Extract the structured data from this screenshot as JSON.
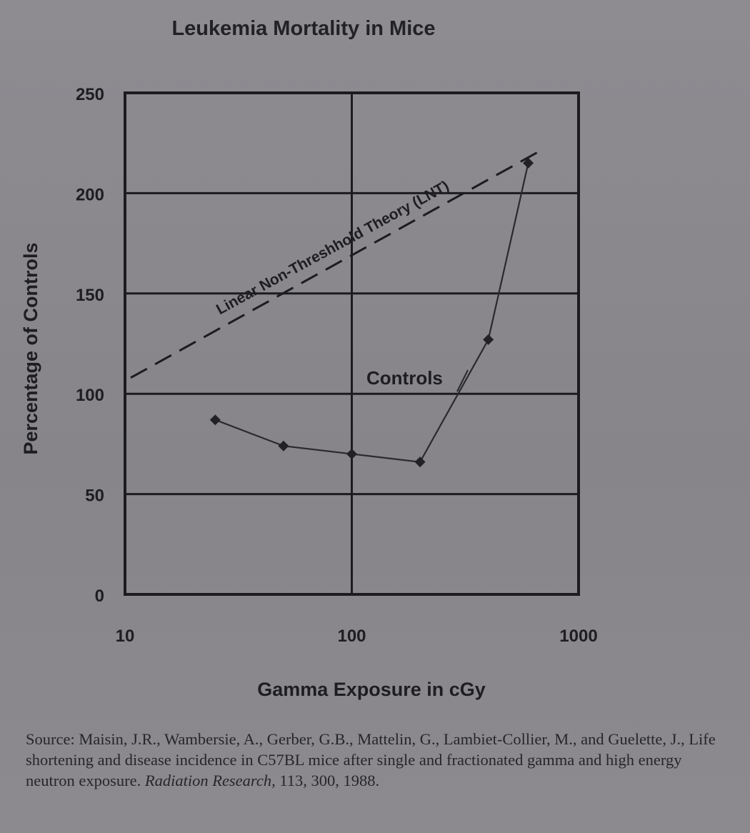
{
  "chart_data": {
    "type": "line",
    "title": "Leukemia Mortality in Mice",
    "xlabel": "Gamma Exposure in cGy",
    "ylabel": "Percentage of Controls",
    "x_scale": "log",
    "xlim": [
      10,
      1000
    ],
    "ylim": [
      0,
      250
    ],
    "x_ticks": [
      "10",
      "100",
      "1000"
    ],
    "y_ticks": [
      "0",
      "50",
      "100",
      "150",
      "200",
      "250"
    ],
    "grid": true,
    "series": [
      {
        "name": "Controls",
        "style": "solid line with diamond markers",
        "x": [
          25,
          50,
          100,
          200,
          400,
          600
        ],
        "y": [
          87,
          74,
          70,
          66,
          127,
          215
        ]
      },
      {
        "name": "Linear Non-Threshhold Theory (LNT)",
        "style": "dashed line",
        "x": [
          10,
          700
        ],
        "y": [
          108,
          222
        ]
      }
    ],
    "colors": {
      "ink": "#1c1c20",
      "paper": "#8a888d"
    }
  },
  "source": {
    "prefix": "Source: Maisin, J.R., Wambersie, A., Gerber, G.B., Mattelin, G., Lambiet-Collier, M., and Guelette, J., Life shortening and disease incidence in C57BL mice after single and fractionated gamma and high energy neutron exposure.",
    "journal": "Radiation Research,",
    "suffix": "113, 300, 1988."
  }
}
